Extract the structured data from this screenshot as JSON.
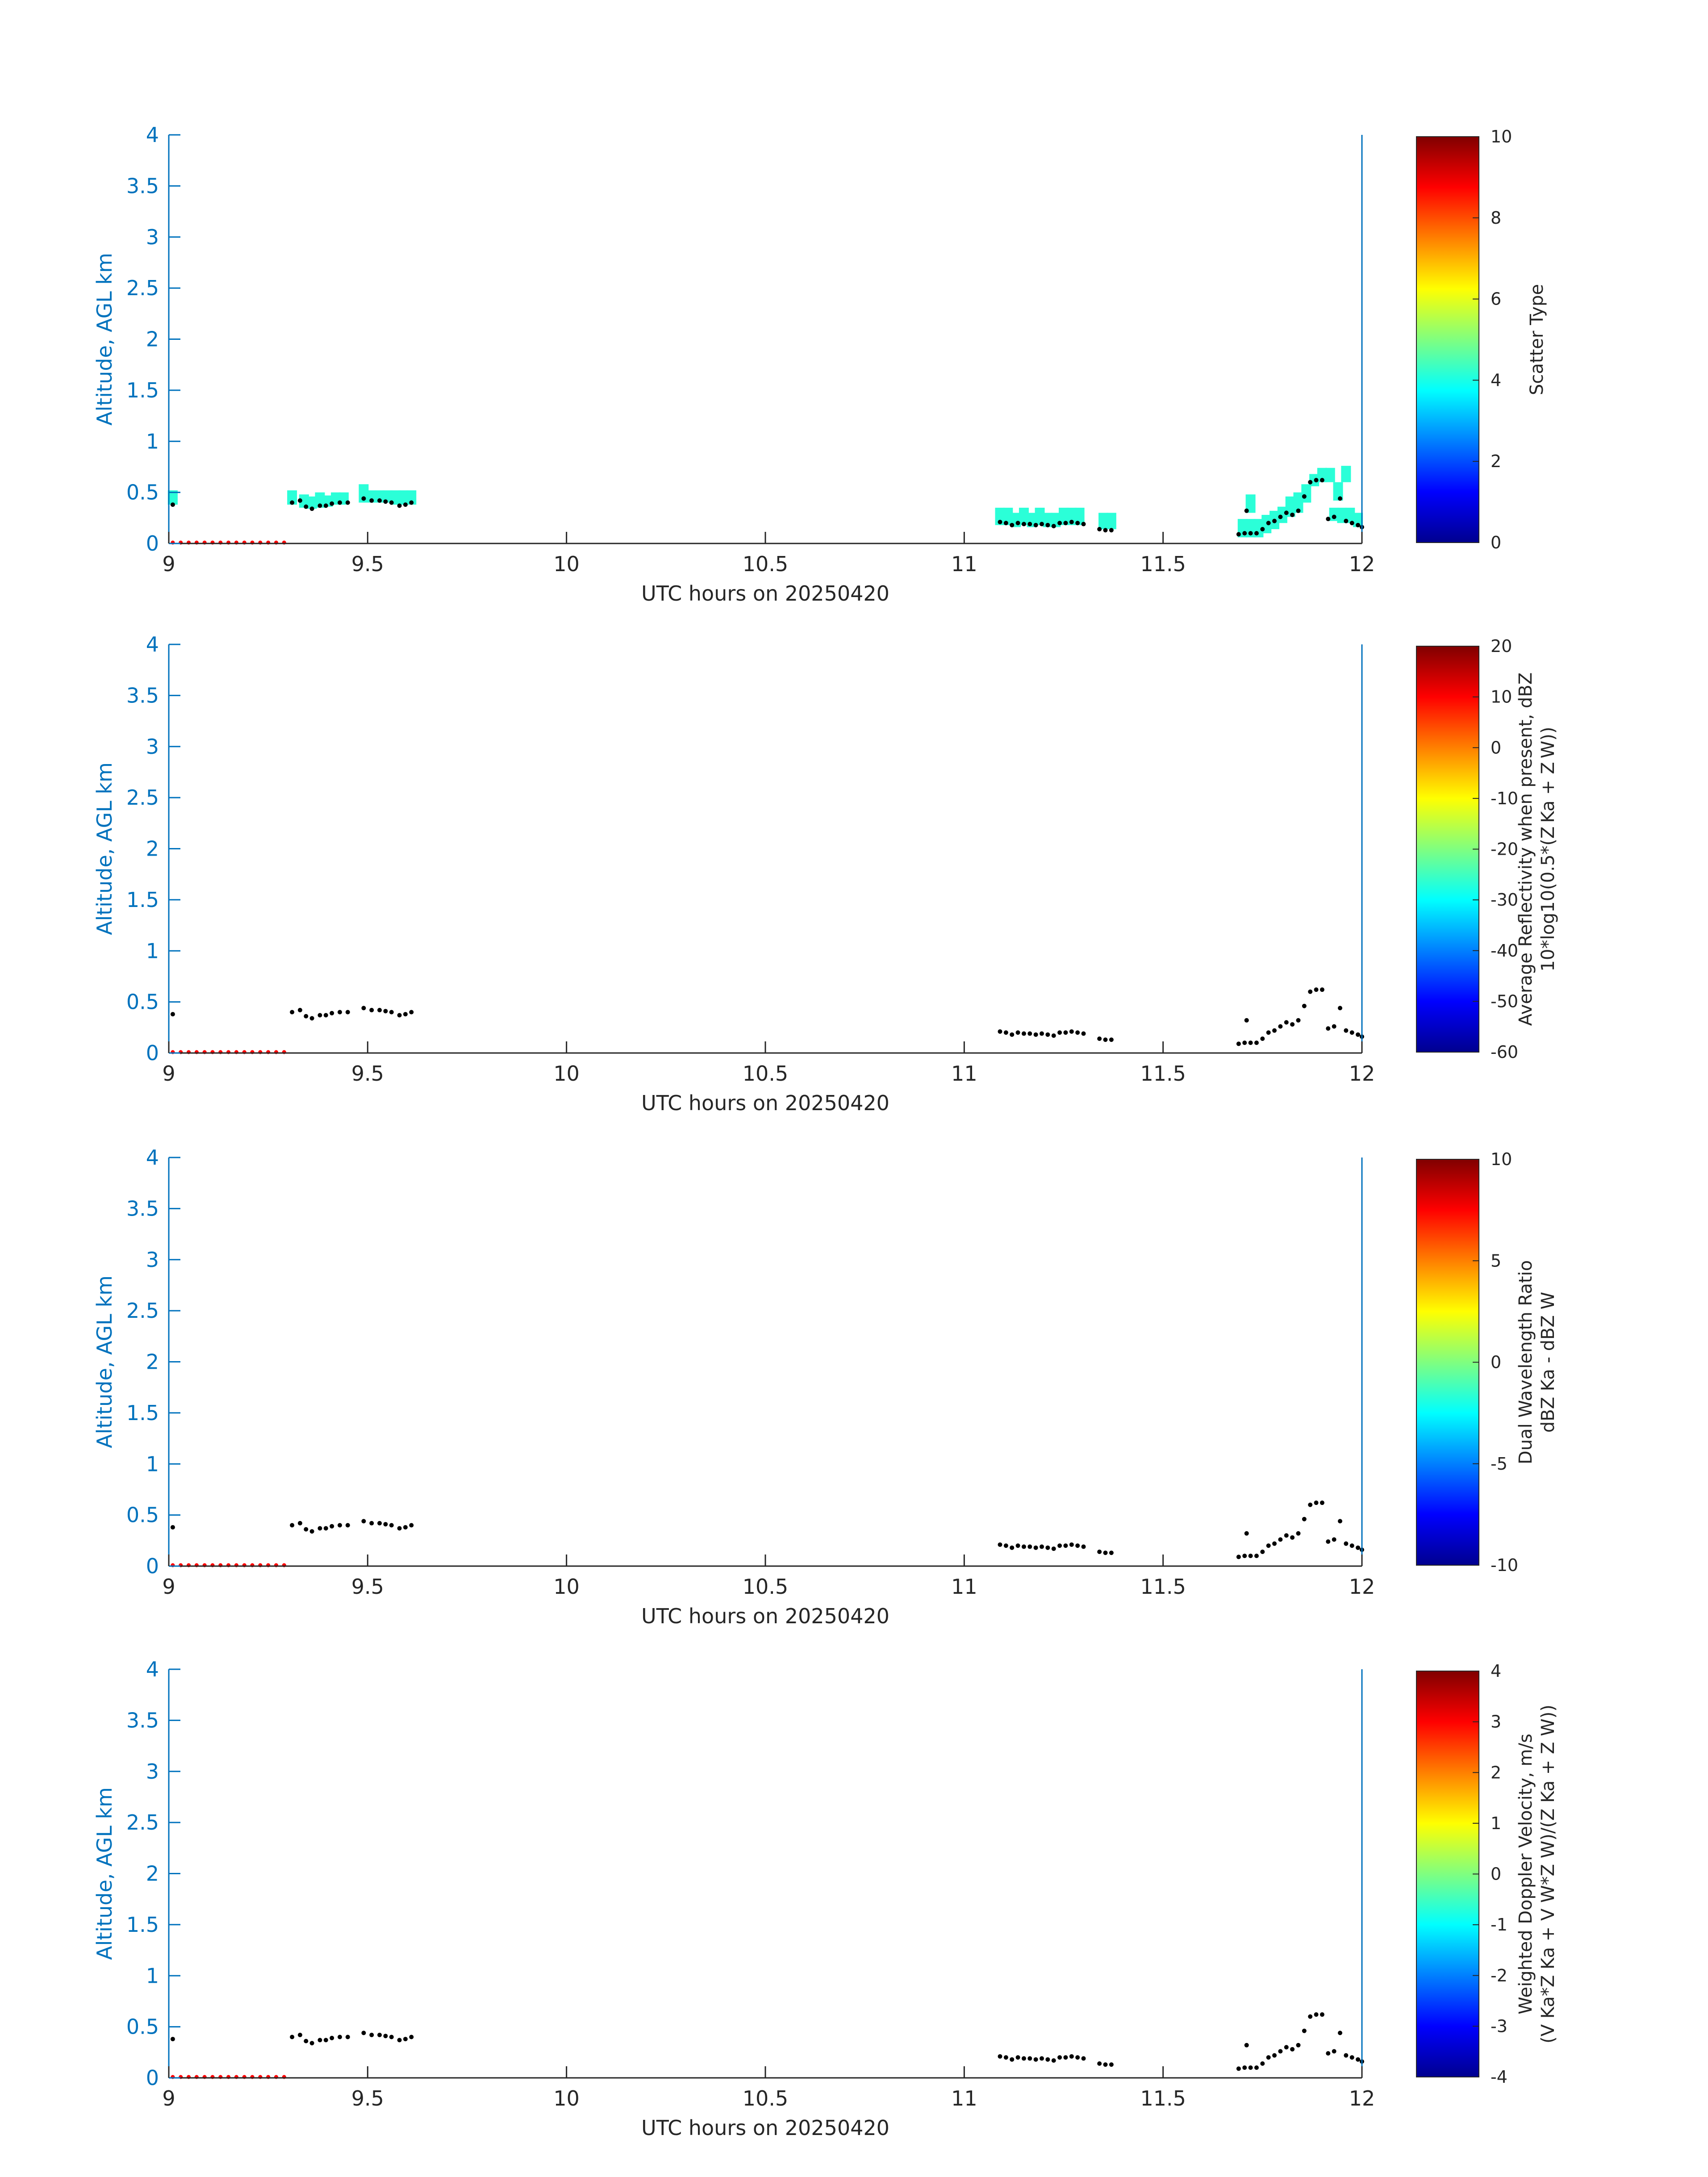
{
  "chart_data": [
    {
      "type": "scatter",
      "title": "",
      "xlabel": "UTC hours on 20250420",
      "ylabel": "Altitude, AGL km",
      "xlim": [
        9,
        12
      ],
      "ylim": [
        0,
        4
      ],
      "xticks": [
        "9",
        "9.5",
        "10",
        "10.5",
        "11",
        "11.5",
        "12"
      ],
      "yticks": [
        "0",
        "0.5",
        "1",
        "1.5",
        "2",
        "2.5",
        "3",
        "3.5",
        "4"
      ],
      "colorbar": {
        "label_lines": [
          "Scatter Type"
        ],
        "range": [
          0,
          10
        ],
        "ticks": [
          "0",
          "2",
          "4",
          "6",
          "8",
          "10"
        ],
        "colormap": "jet"
      },
      "shaded_cells": {
        "color": "#2BFFD8",
        "value": 3.8,
        "cells": [
          [
            9.01,
            0.38,
            0.52
          ],
          [
            9.31,
            0.38,
            0.52
          ],
          [
            9.34,
            0.35,
            0.48
          ],
          [
            9.36,
            0.34,
            0.46
          ],
          [
            9.38,
            0.35,
            0.5
          ],
          [
            9.4,
            0.36,
            0.47
          ],
          [
            9.42,
            0.38,
            0.5
          ],
          [
            9.44,
            0.38,
            0.5
          ],
          [
            9.49,
            0.4,
            0.58
          ],
          [
            9.51,
            0.4,
            0.52
          ],
          [
            9.53,
            0.4,
            0.52
          ],
          [
            9.55,
            0.4,
            0.52
          ],
          [
            9.57,
            0.38,
            0.52
          ],
          [
            9.59,
            0.38,
            0.52
          ],
          [
            9.61,
            0.38,
            0.52
          ],
          [
            11.09,
            0.18,
            0.35
          ],
          [
            11.11,
            0.18,
            0.35
          ],
          [
            11.13,
            0.16,
            0.3
          ],
          [
            11.15,
            0.18,
            0.35
          ],
          [
            11.17,
            0.16,
            0.3
          ],
          [
            11.19,
            0.18,
            0.35
          ],
          [
            11.21,
            0.16,
            0.3
          ],
          [
            11.23,
            0.16,
            0.3
          ],
          [
            11.25,
            0.18,
            0.35
          ],
          [
            11.27,
            0.18,
            0.35
          ],
          [
            11.29,
            0.18,
            0.35
          ],
          [
            11.35,
            0.14,
            0.3
          ],
          [
            11.37,
            0.14,
            0.3
          ],
          [
            11.7,
            0.06,
            0.24
          ],
          [
            11.72,
            0.06,
            0.24
          ],
          [
            11.74,
            0.06,
            0.24
          ],
          [
            11.76,
            0.1,
            0.28
          ],
          [
            11.78,
            0.14,
            0.32
          ],
          [
            11.8,
            0.2,
            0.36
          ],
          [
            11.82,
            0.26,
            0.46
          ],
          [
            11.84,
            0.3,
            0.5
          ],
          [
            11.86,
            0.4,
            0.58
          ],
          [
            11.88,
            0.56,
            0.68
          ],
          [
            11.9,
            0.6,
            0.74
          ],
          [
            11.92,
            0.6,
            0.74
          ],
          [
            11.93,
            0.22,
            0.35
          ],
          [
            11.95,
            0.2,
            0.35
          ],
          [
            11.96,
            0.6,
            0.76
          ],
          [
            11.97,
            0.2,
            0.35
          ],
          [
            11.99,
            0.16,
            0.3
          ],
          [
            11.72,
            0.3,
            0.48
          ],
          [
            11.94,
            0.42,
            0.6
          ]
        ]
      },
      "black_points": {
        "color": "#000000",
        "x": [
          9.01,
          9.31,
          9.33,
          9.345,
          9.36,
          9.38,
          9.395,
          9.41,
          9.43,
          9.45,
          9.49,
          9.51,
          9.53,
          9.545,
          9.56,
          9.58,
          9.595,
          9.61,
          11.09,
          11.105,
          11.12,
          11.135,
          11.15,
          11.165,
          11.18,
          11.195,
          11.21,
          11.225,
          11.24,
          11.255,
          11.27,
          11.285,
          11.3,
          11.34,
          11.355,
          11.37,
          11.69,
          11.705,
          11.72,
          11.735,
          11.75,
          11.765,
          11.78,
          11.795,
          11.81,
          11.825,
          11.84,
          11.855,
          11.87,
          11.885,
          11.9,
          11.915,
          11.93,
          11.945,
          11.96,
          11.975,
          11.99,
          12.0,
          11.71
        ],
        "y": [
          0.38,
          0.4,
          0.42,
          0.36,
          0.34,
          0.37,
          0.37,
          0.39,
          0.4,
          0.4,
          0.44,
          0.42,
          0.42,
          0.41,
          0.4,
          0.37,
          0.38,
          0.4,
          0.21,
          0.2,
          0.18,
          0.2,
          0.19,
          0.19,
          0.18,
          0.19,
          0.18,
          0.17,
          0.2,
          0.2,
          0.21,
          0.2,
          0.19,
          0.14,
          0.13,
          0.13,
          0.09,
          0.1,
          0.1,
          0.1,
          0.14,
          0.2,
          0.22,
          0.26,
          0.3,
          0.28,
          0.32,
          0.46,
          0.6,
          0.62,
          0.62,
          0.24,
          0.26,
          0.44,
          0.22,
          0.2,
          0.18,
          0.16,
          0.32
        ]
      },
      "red_points": {
        "color": "#FF0000",
        "x": [
          9.01,
          9.03,
          9.05,
          9.07,
          9.09,
          9.11,
          9.13,
          9.15,
          9.17,
          9.19,
          9.21,
          9.23,
          9.25,
          9.27,
          9.29
        ],
        "y": [
          0,
          0,
          0,
          0,
          0,
          0,
          0,
          0,
          0,
          0,
          0,
          0,
          0,
          0,
          0
        ]
      }
    },
    {
      "type": "scatter",
      "title": "",
      "xlabel": "UTC hours on 20250420",
      "ylabel": "Altitude, AGL km",
      "xlim": [
        9,
        12
      ],
      "ylim": [
        0,
        4
      ],
      "xticks": [
        "9",
        "9.5",
        "10",
        "10.5",
        "11",
        "11.5",
        "12"
      ],
      "yticks": [
        "0",
        "0.5",
        "1",
        "1.5",
        "2",
        "2.5",
        "3",
        "3.5",
        "4"
      ],
      "colorbar": {
        "label_lines": [
          "Average Reflectivity when present, dBZ",
          "10*log10(0.5*(Z Ka + Z W))"
        ],
        "range": [
          -60,
          20
        ],
        "ticks": [
          "-60",
          "-50",
          "-40",
          "-30",
          "-20",
          "-10",
          "0",
          "10",
          "20"
        ],
        "colormap": "jet"
      },
      "shaded_cells": {
        "color": "#2BFFD8",
        "cells": []
      },
      "black_points": {
        "same_as_panel": 0
      },
      "red_points": {
        "same_as_panel": 0
      }
    },
    {
      "type": "scatter",
      "title": "",
      "xlabel": "UTC hours on 20250420",
      "ylabel": "Altitude, AGL km",
      "xlim": [
        9,
        12
      ],
      "ylim": [
        0,
        4
      ],
      "xticks": [
        "9",
        "9.5",
        "10",
        "10.5",
        "11",
        "11.5",
        "12"
      ],
      "yticks": [
        "0",
        "0.5",
        "1",
        "1.5",
        "2",
        "2.5",
        "3",
        "3.5",
        "4"
      ],
      "colorbar": {
        "label_lines": [
          "Dual Wavelength Ratio",
          "dBZ Ka - dBZ W"
        ],
        "range": [
          -10,
          10
        ],
        "ticks": [
          "-10",
          "-5",
          "0",
          "5",
          "10"
        ],
        "colormap": "jet"
      },
      "shaded_cells": {
        "color": "#2BFFD8",
        "cells": []
      },
      "black_points": {
        "same_as_panel": 0
      },
      "red_points": {
        "same_as_panel": 0
      }
    },
    {
      "type": "scatter",
      "title": "",
      "xlabel": "UTC hours on 20250420",
      "ylabel": "Altitude, AGL km",
      "xlim": [
        9,
        12
      ],
      "ylim": [
        0,
        4
      ],
      "xticks": [
        "9",
        "9.5",
        "10",
        "10.5",
        "11",
        "11.5",
        "12"
      ],
      "yticks": [
        "0",
        "0.5",
        "1",
        "1.5",
        "2",
        "2.5",
        "3",
        "3.5",
        "4"
      ],
      "colorbar": {
        "label_lines": [
          "Weighted Doppler Velocity, m/s",
          "(V Ka*Z Ka + V W*Z W)/(Z Ka + Z W))"
        ],
        "range": [
          -4,
          4
        ],
        "ticks": [
          "-4",
          "-3",
          "-2",
          "-1",
          "0",
          "1",
          "2",
          "3",
          "4"
        ],
        "colormap": "jet"
      },
      "shaded_cells": {
        "color": "#2BFFD8",
        "cells": []
      },
      "black_points": {
        "same_as_panel": 0
      },
      "red_points": {
        "same_as_panel": 0
      }
    }
  ]
}
